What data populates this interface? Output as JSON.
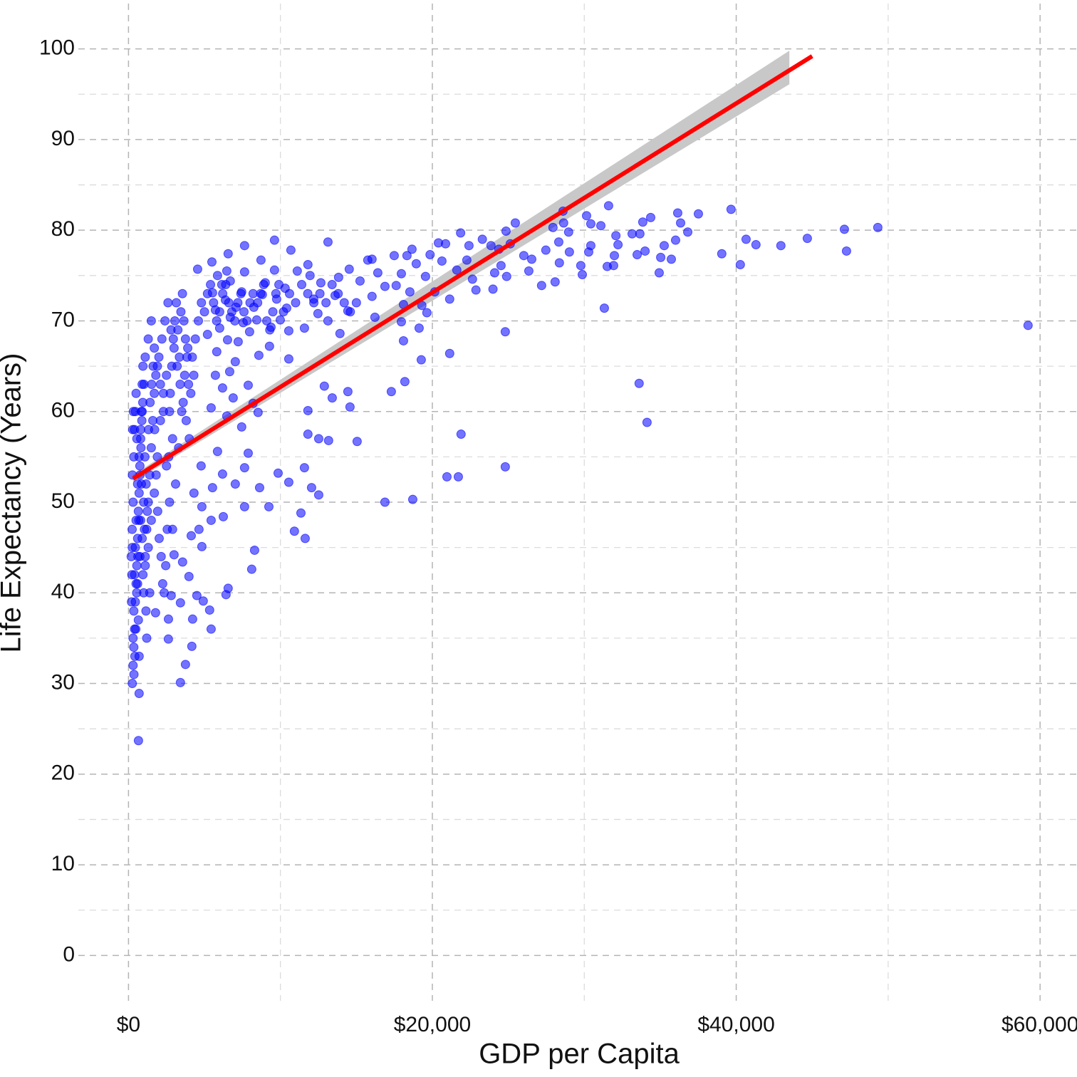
{
  "chart_data": {
    "type": "scatter",
    "x_label": "GDP per Capita",
    "y_label": "Life Expectancy (Years)",
    "color": "#0000ff",
    "grid": true,
    "xlim": [
      -3300,
      62430
    ],
    "ylim": [
      -5,
      105
    ],
    "xticks": [
      {
        "value": 0,
        "label": "$0"
      },
      {
        "value": 20000,
        "label": "$20,000"
      },
      {
        "value": 40000,
        "label": "$40,000"
      },
      {
        "value": 60000,
        "label": "$60,000"
      }
    ],
    "minor_xticks": [
      10000,
      30000,
      50000
    ],
    "yticks": [
      0,
      10,
      20,
      30,
      40,
      50,
      60,
      70,
      80,
      90,
      100
    ],
    "minor_yticks": [
      5,
      15,
      25,
      35,
      45,
      55,
      65,
      75,
      85,
      95
    ],
    "trend": {
      "x": [
        300,
        45000
      ],
      "values": [
        52.6,
        99.2
      ],
      "color": "#ff0000"
    },
    "ci": {
      "x": [
        300,
        43500
      ],
      "lower": [
        52.2,
        96.1
      ],
      "upper": [
        53.0,
        99.8
      ],
      "color": "#c8c8c8"
    },
    "x": [
      59210,
      656,
      700,
      3420,
      3750,
      4170,
      2625,
      5440,
      4220,
      5340,
      4920,
      4500,
      6420,
      6560,
      8110,
      8300,
      11630,
      10920,
      11350,
      9240,
      12520,
      12050,
      10550,
      9850,
      11580,
      16880,
      18710,
      20960,
      21710,
      24800,
      21890,
      15050,
      13170,
      12520,
      11810,
      11810,
      14580,
      13410,
      14440,
      12890,
      17300,
      18190,
      19270,
      21140,
      33610,
      34130,
      24800,
      18100,
      19130,
      31320,
      9610,
      7640,
      10690,
      13130,
      6560,
      39050,
      40270,
      39660,
      40650,
      41300,
      42940,
      44680,
      47120,
      47260,
      49320,
      37510,
      36150,
      36340,
      36810,
      36010,
      35260,
      35730,
      35030,
      34930,
      34370,
      33850,
      33660,
      33150,
      34000,
      33480,
      31600,
      30150,
      30430,
      31090,
      32080,
      32220,
      31980,
      31510,
      31930,
      30430,
      30290,
      29870,
      29770,
      28600,
      28970,
      28640,
      27940,
      28320,
      29020,
      28360,
      28080,
      27190,
      26350,
      26540,
      27470,
      25460,
      24850,
      25130,
      24380,
      26020,
      24890,
      24100,
      24520,
      23990,
      22870,
      23290,
      23860,
      22410,
      21860,
      20870,
      20400,
      19850,
      20630,
      21610,
      22270,
      22640,
      21140,
      20160,
      19550,
      18940,
      18660,
      18330,
      17490,
      17960,
      17620,
      18520,
      18100,
      19310,
      19640,
      17960,
      16880,
      16410,
      15750,
      16030,
      14530,
      15240,
      16220,
      16030,
      15000,
      14440,
      13920,
      13130,
      13600,
      13830,
      12660,
      11950,
      11810,
      11110,
      12190,
      12470,
      11580,
      10550,
      9990,
      9380,
      10410,
      9750,
      10310,
      9000,
      9610,
      8720,
      8810,
      8250,
      8440,
      7970,
      9280,
      10550,
      8580,
      7220,
      7550,
      7080,
      7450,
      6700,
      7640,
      6470,
      5860,
      5490,
      4550,
      6140,
      5530,
      6380,
      5720,
      6700,
      6000,
      5200,
      6520,
      5810,
      7030,
      6660,
      5720,
      6190,
      6890,
      7880,
      8200,
      8530,
      7450,
      6470,
      5440,
      5860,
      4780,
      6190,
      5530,
      7030,
      7640,
      7880,
      8630,
      7640,
      6240,
      5440,
      4830,
      4310,
      4640,
      4130,
      4830,
      3560,
      3000,
      3980,
      2810,
      3420,
      2630,
      1780,
      300,
      350,
      400,
      450,
      500,
      600,
      700,
      800,
      900,
      1000,
      1100,
      1200,
      1300,
      1400,
      1500,
      1600,
      1700,
      1800,
      2000,
      2200,
      2400,
      2600,
      2800,
      3000,
      3200,
      3400,
      3600,
      3800,
      4000,
      4200,
      4400,
      4600,
      4800,
      5000,
      5200,
      5400,
      5600,
      5800,
      6000,
      6200,
      250,
      300,
      350,
      400,
      450,
      500,
      550,
      600,
      650,
      700,
      750,
      800,
      850,
      900,
      950,
      1000,
      1050,
      1100,
      1150,
      1200,
      250,
      300,
      350,
      400,
      450,
      500,
      550,
      600,
      650,
      700,
      750,
      800,
      850,
      900,
      950,
      1300,
      1400,
      1500,
      1700,
      1900,
      2100,
      2300,
      2500,
      2700,
      2900,
      1100,
      1300,
      1500,
      1700,
      1900,
      2100,
      2300,
      2500,
      2700,
      2900,
      3100,
      3300,
      3500,
      3700,
      3900,
      200,
      220,
      240,
      260,
      280,
      320,
      180,
      360,
      420,
      480,
      540,
      620,
      680,
      760,
      820,
      880,
      940,
      1020,
      1080,
      1160,
      1240,
      1320,
      1420,
      1520,
      1620,
      1720,
      1820,
      1920,
      2020,
      2150,
      2250,
      2350,
      2450,
      2550,
      2650,
      2750,
      2850,
      2950,
      3050,
      3150,
      3250,
      3350,
      3450,
      3550,
      3650,
      3750,
      3850,
      3950,
      4100,
      4300,
      6400,
      6600,
      6800,
      7000,
      7200,
      7400,
      7600,
      7800,
      8000,
      8200,
      8500,
      8700,
      8900,
      9100,
      9300,
      9500,
      9700,
      9900,
      10200,
      10600,
      11000,
      11400,
      11800,
      12200,
      12600,
      13000,
      13400,
      13800,
      14200,
      14600
    ],
    "values": [
      69.5,
      23.7,
      28.9,
      30.1,
      32.1,
      34.1,
      34.9,
      36.0,
      37.1,
      38.1,
      39.1,
      39.7,
      39.8,
      40.5,
      42.6,
      44.7,
      46.0,
      46.8,
      48.8,
      49.5,
      50.8,
      51.6,
      52.2,
      53.2,
      53.8,
      50.0,
      50.3,
      52.8,
      52.8,
      53.9,
      57.5,
      56.7,
      56.8,
      57.0,
      57.5,
      60.1,
      60.5,
      61.5,
      62.2,
      62.8,
      62.2,
      63.3,
      65.7,
      66.4,
      63.1,
      58.8,
      68.8,
      67.8,
      69.2,
      71.4,
      78.9,
      78.3,
      77.8,
      78.7,
      77.4,
      77.4,
      76.2,
      82.3,
      79.0,
      78.4,
      78.3,
      79.1,
      80.1,
      77.7,
      80.3,
      81.8,
      81.9,
      80.8,
      79.8,
      78.9,
      78.3,
      76.8,
      77.0,
      75.3,
      81.4,
      80.9,
      79.6,
      79.6,
      77.7,
      77.3,
      82.7,
      81.6,
      80.7,
      80.5,
      79.4,
      78.4,
      77.2,
      76.0,
      76.1,
      78.3,
      77.6,
      75.1,
      76.1,
      82.1,
      79.8,
      80.8,
      80.3,
      78.7,
      77.6,
      76.4,
      74.3,
      73.9,
      75.5,
      76.8,
      77.8,
      80.8,
      79.9,
      78.5,
      77.9,
      77.2,
      74.9,
      75.3,
      76.1,
      73.5,
      73.4,
      79.0,
      78.3,
      78.3,
      79.7,
      78.5,
      78.6,
      77.3,
      76.6,
      75.6,
      76.7,
      74.6,
      72.4,
      73.2,
      74.9,
      76.3,
      77.9,
      77.2,
      77.2,
      75.2,
      73.9,
      73.2,
      71.8,
      71.7,
      70.9,
      69.9,
      73.8,
      75.3,
      76.7,
      76.8,
      75.7,
      74.4,
      70.4,
      72.7,
      72.0,
      71.1,
      68.6,
      70.0,
      72.8,
      74.8,
      74.2,
      75.0,
      76.2,
      75.5,
      72.4,
      70.8,
      69.2,
      68.9,
      70.1,
      69.3,
      71.4,
      72.4,
      73.6,
      74.2,
      75.6,
      76.7,
      72.9,
      71.5,
      70.1,
      68.8,
      67.2,
      65.8,
      66.2,
      67.7,
      69.8,
      71.5,
      73.2,
      74.4,
      75.4,
      75.5,
      75.0,
      76.5,
      75.7,
      74.0,
      73.1,
      72.3,
      71.2,
      70.4,
      69.2,
      68.5,
      67.9,
      66.6,
      65.5,
      64.4,
      64.0,
      62.6,
      61.5,
      62.9,
      60.9,
      59.9,
      58.3,
      59.5,
      60.4,
      55.6,
      54.0,
      53.1,
      51.6,
      52.0,
      53.8,
      55.4,
      51.6,
      49.5,
      48.4,
      48.0,
      49.5,
      51.0,
      47.0,
      46.3,
      45.1,
      43.4,
      44.2,
      41.8,
      39.7,
      38.9,
      37.1,
      37.8,
      35,
      38,
      42,
      45,
      48,
      52,
      55,
      58,
      60,
      40,
      44,
      47,
      50,
      53,
      56,
      59,
      62,
      64,
      66,
      68,
      70,
      72,
      69,
      67,
      65,
      63,
      61,
      59,
      57,
      66,
      68,
      70,
      72,
      71,
      73,
      74,
      72,
      70,
      71,
      73,
      30,
      32,
      34,
      36,
      39,
      41,
      43,
      46,
      49,
      51,
      54,
      57,
      60,
      63,
      65,
      50,
      47,
      43,
      38,
      35,
      45,
      50,
      55,
      58,
      60,
      62,
      57,
      41,
      37,
      33,
      44,
      48,
      52,
      46,
      42,
      45,
      40,
      48,
      51,
      55,
      59,
      62,
      64,
      60,
      57,
      66,
      68,
      70,
      67,
      65,
      63,
      60,
      54,
      50,
      47,
      52,
      56,
      60,
      64,
      67,
      39,
      42,
      47,
      53,
      58,
      60,
      44,
      31,
      33,
      36,
      40,
      44,
      48,
      53,
      56,
      59,
      61,
      63,
      55,
      52,
      49,
      58,
      61,
      63,
      65,
      58,
      53,
      49,
      46,
      44,
      41,
      40,
      43,
      47,
      55,
      62,
      65,
      68,
      70,
      72,
      69,
      66,
      71,
      73,
      70,
      68,
      66,
      63,
      62,
      64,
      74,
      72,
      71,
      70,
      72,
      73,
      71,
      70,
      72,
      73,
      72,
      73,
      74,
      70,
      69,
      71,
      73,
      74,
      71,
      73,
      72,
      74,
      73,
      72,
      73,
      72,
      74,
      73,
      72,
      71
    ]
  }
}
